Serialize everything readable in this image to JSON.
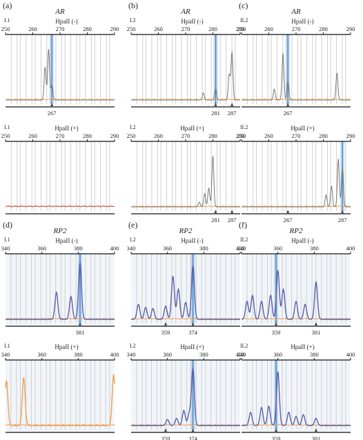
{
  "figure": {
    "gene_top": "AR",
    "gene_bottom": "RP2",
    "enzyme": "HpaII",
    "minus": "(-)",
    "plus": "(+)"
  },
  "chart_data": [
    {
      "letter": "(a)",
      "gene": "AR",
      "sample": "I.1",
      "condition": "(-)",
      "type": "line",
      "xlim": [
        250,
        290
      ],
      "ticks": [
        250,
        260,
        270,
        280,
        290
      ],
      "peaks": [
        {
          "x": 264.5,
          "h": 0.55
        },
        {
          "x": 265.8,
          "h": 0.85
        },
        {
          "x": 267,
          "h": 0.25
        }
      ],
      "labels": [
        267
      ],
      "highlights": [
        267
      ],
      "baseline": "orange"
    },
    {
      "letter": "",
      "gene": "",
      "sample": "I.1",
      "condition": "(+)",
      "type": "line",
      "xlim": [
        250,
        290
      ],
      "ticks": [
        250,
        260,
        270,
        280,
        290
      ],
      "peaks": [],
      "labels": [],
      "highlights": [],
      "baseline": "red"
    },
    {
      "letter": "(b)",
      "gene": "AR",
      "sample": "I.2",
      "condition": "(-)",
      "type": "line",
      "xlim": [
        250,
        290
      ],
      "ticks": [
        250,
        260,
        270,
        280,
        290
      ],
      "peaks": [
        {
          "x": 276.5,
          "h": 0.12
        },
        {
          "x": 281,
          "h": 0.2
        },
        {
          "x": 286,
          "h": 0.42
        },
        {
          "x": 287,
          "h": 0.8
        }
      ],
      "labels": [
        281,
        287
      ],
      "highlights": [
        281
      ],
      "baseline": "orange"
    },
    {
      "letter": "",
      "gene": "",
      "sample": "I.2",
      "condition": "(+)",
      "type": "line",
      "xlim": [
        250,
        290
      ],
      "ticks": [
        250,
        260,
        270,
        280,
        290
      ],
      "peaks": [
        {
          "x": 275,
          "h": 0.08
        },
        {
          "x": 277,
          "h": 0.22
        },
        {
          "x": 278.5,
          "h": 0.32
        },
        {
          "x": 280,
          "h": 0.85
        }
      ],
      "labels": [
        281,
        287
      ],
      "highlights": [],
      "baseline": "orange"
    },
    {
      "letter": "(c)",
      "gene": "AR",
      "sample": "II.2",
      "condition": "(-)",
      "type": "line",
      "xlim": [
        250,
        290
      ],
      "ticks": [
        250,
        260,
        270,
        280,
        290
      ],
      "peaks": [
        {
          "x": 262,
          "h": 0.18
        },
        {
          "x": 265.2,
          "h": 0.78
        },
        {
          "x": 267,
          "h": 0.32
        },
        {
          "x": 285,
          "h": 0.45
        }
      ],
      "labels": [
        267
      ],
      "highlights": [
        267
      ],
      "baseline": "orange"
    },
    {
      "letter": "",
      "gene": "",
      "sample": "II.2",
      "condition": "(+)",
      "type": "line",
      "xlim": [
        250,
        290
      ],
      "ticks": [
        250,
        260,
        270,
        280,
        290
      ],
      "peaks": [
        {
          "x": 281,
          "h": 0.2
        },
        {
          "x": 283,
          "h": 0.35
        },
        {
          "x": 285.5,
          "h": 0.8
        },
        {
          "x": 287,
          "h": 0.65
        }
      ],
      "labels": [
        267,
        287
      ],
      "highlights": [
        287
      ],
      "baseline": "orange"
    },
    {
      "letter": "(d)",
      "gene": "RP2",
      "sample": "I.1",
      "condition": "(-)",
      "type": "line",
      "xlim": [
        340,
        400
      ],
      "ticks": [
        340,
        360,
        380,
        400
      ],
      "peaks": [
        {
          "x": 368,
          "h": 0.45
        },
        {
          "x": 376,
          "h": 0.38
        },
        {
          "x": 381,
          "h": 0.95
        }
      ],
      "labels": [
        381
      ],
      "highlights": [
        381
      ],
      "baseline": "orange"
    },
    {
      "letter": "",
      "gene": "",
      "sample": "I.1",
      "condition": "(+)",
      "type": "line",
      "xlim": [
        340,
        400
      ],
      "ticks": [
        340,
        360,
        380,
        400
      ],
      "peaks": [
        {
          "x": 340.5,
          "h": 0.75
        },
        {
          "x": 350,
          "h": 0.8
        },
        {
          "x": 399.5,
          "h": 0.85
        }
      ],
      "labels": [],
      "highlights": [],
      "baseline": "orange"
    },
    {
      "letter": "(e)",
      "gene": "RP2",
      "sample": "I.2",
      "condition": "(-)",
      "type": "line",
      "xlim": [
        340,
        400
      ],
      "ticks": [
        340,
        360,
        380,
        400
      ],
      "peaks": [
        {
          "x": 344,
          "h": 0.25
        },
        {
          "x": 348,
          "h": 0.2
        },
        {
          "x": 352,
          "h": 0.18
        },
        {
          "x": 359,
          "h": 0.22
        },
        {
          "x": 363,
          "h": 0.72
        },
        {
          "x": 366,
          "h": 0.5
        },
        {
          "x": 370,
          "h": 0.28
        },
        {
          "x": 374,
          "h": 0.9
        }
      ],
      "labels": [
        359,
        374
      ],
      "highlights": [
        374
      ],
      "baseline": "orange"
    },
    {
      "letter": "",
      "gene": "",
      "sample": "I.2",
      "condition": "(+)",
      "type": "line",
      "xlim": [
        340,
        400
      ],
      "ticks": [
        340,
        360,
        380,
        400
      ],
      "peaks": [
        {
          "x": 360,
          "h": 0.1
        },
        {
          "x": 365,
          "h": 0.12
        },
        {
          "x": 369,
          "h": 0.25
        },
        {
          "x": 372,
          "h": 0.2
        },
        {
          "x": 374,
          "h": 0.95
        }
      ],
      "labels": [
        359,
        374
      ],
      "highlights": [
        374
      ],
      "baseline": "orange"
    },
    {
      "letter": "(f)",
      "gene": "RP2",
      "sample": "II.2",
      "condition": "(-)",
      "type": "line",
      "xlim": [
        340,
        400
      ],
      "ticks": [
        340,
        360,
        380,
        400
      ],
      "peaks": [
        {
          "x": 343,
          "h": 0.3
        },
        {
          "x": 346,
          "h": 0.4
        },
        {
          "x": 351,
          "h": 0.3
        },
        {
          "x": 356,
          "h": 0.4
        },
        {
          "x": 360,
          "h": 0.82
        },
        {
          "x": 363,
          "h": 0.5
        },
        {
          "x": 370,
          "h": 0.3
        },
        {
          "x": 375,
          "h": 0.25
        },
        {
          "x": 381,
          "h": 0.62
        }
      ],
      "labels": [
        359,
        381
      ],
      "highlights": [
        359
      ],
      "baseline": "orange"
    },
    {
      "letter": "",
      "gene": "",
      "sample": "II.2",
      "condition": "(+)",
      "type": "line",
      "xlim": [
        340,
        400
      ],
      "ticks": [
        340,
        360,
        380,
        400
      ],
      "peaks": [
        {
          "x": 345,
          "h": 0.22
        },
        {
          "x": 351,
          "h": 0.3
        },
        {
          "x": 355,
          "h": 0.32
        },
        {
          "x": 360,
          "h": 0.9
        },
        {
          "x": 366,
          "h": 0.22
        },
        {
          "x": 370,
          "h": 0.15
        },
        {
          "x": 374,
          "h": 0.18
        },
        {
          "x": 381,
          "h": 0.12
        }
      ],
      "labels": [
        359,
        381
      ],
      "highlights": [
        359
      ],
      "baseline": "orange"
    }
  ]
}
